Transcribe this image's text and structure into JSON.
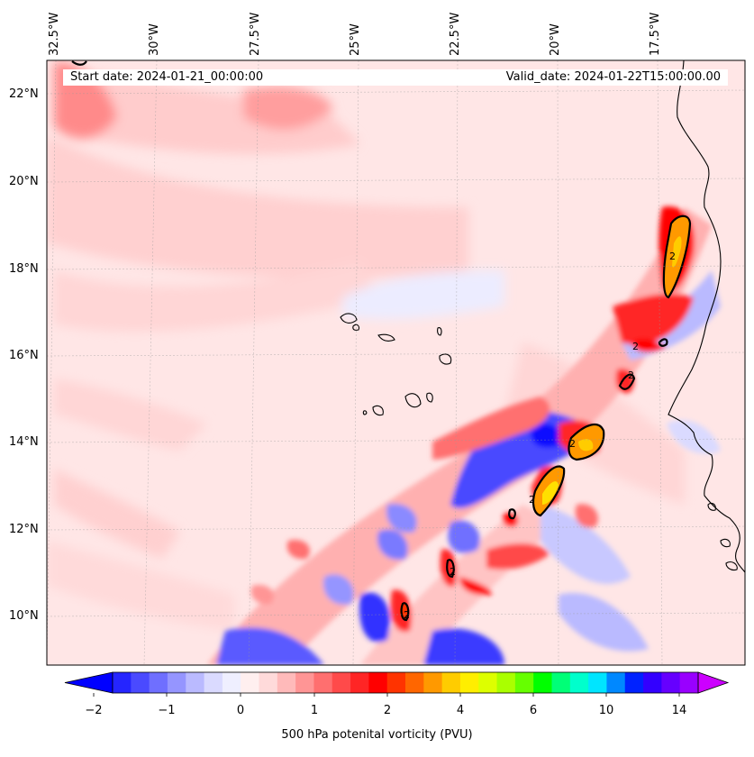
{
  "map": {
    "title_left": "Start date: 2024-01-21_00:00:00",
    "title_right": "Valid_date: 2024-01-22T15:00:00.00",
    "lon_labels": [
      "32.5°W",
      "30°W",
      "27.5°W",
      "25°W",
      "22.5°W",
      "20°W",
      "17.5°W"
    ],
    "lat_labels": [
      "22°N",
      "20°N",
      "18°N",
      "16°N",
      "14°N",
      "12°N",
      "10°N"
    ],
    "contour_label": "2"
  },
  "colorbar": {
    "label": "500 hPa potenital vorticity (PVU)",
    "ticks": [
      "−2",
      "−1",
      "0",
      "1",
      "2",
      "4",
      "6",
      "10",
      "14"
    ],
    "colors": [
      "#0000ff",
      "#2525ff",
      "#4a4aff",
      "#6f6fff",
      "#9595ff",
      "#babaff",
      "#dadaff",
      "#efefff",
      "#ffefef",
      "#ffdada",
      "#ffbaba",
      "#ff9595",
      "#ff6f6f",
      "#ff4a4a",
      "#ff2525",
      "#ff0000",
      "#ff3300",
      "#ff6600",
      "#ff9900",
      "#ffcc00",
      "#ffee00",
      "#ddff00",
      "#aaff00",
      "#66ff00",
      "#00ff00",
      "#00ff77",
      "#00ffcc",
      "#00e5ff",
      "#0088ff",
      "#0022ff",
      "#3300ff",
      "#6600ff",
      "#9900ff",
      "#cc00ff"
    ]
  }
}
